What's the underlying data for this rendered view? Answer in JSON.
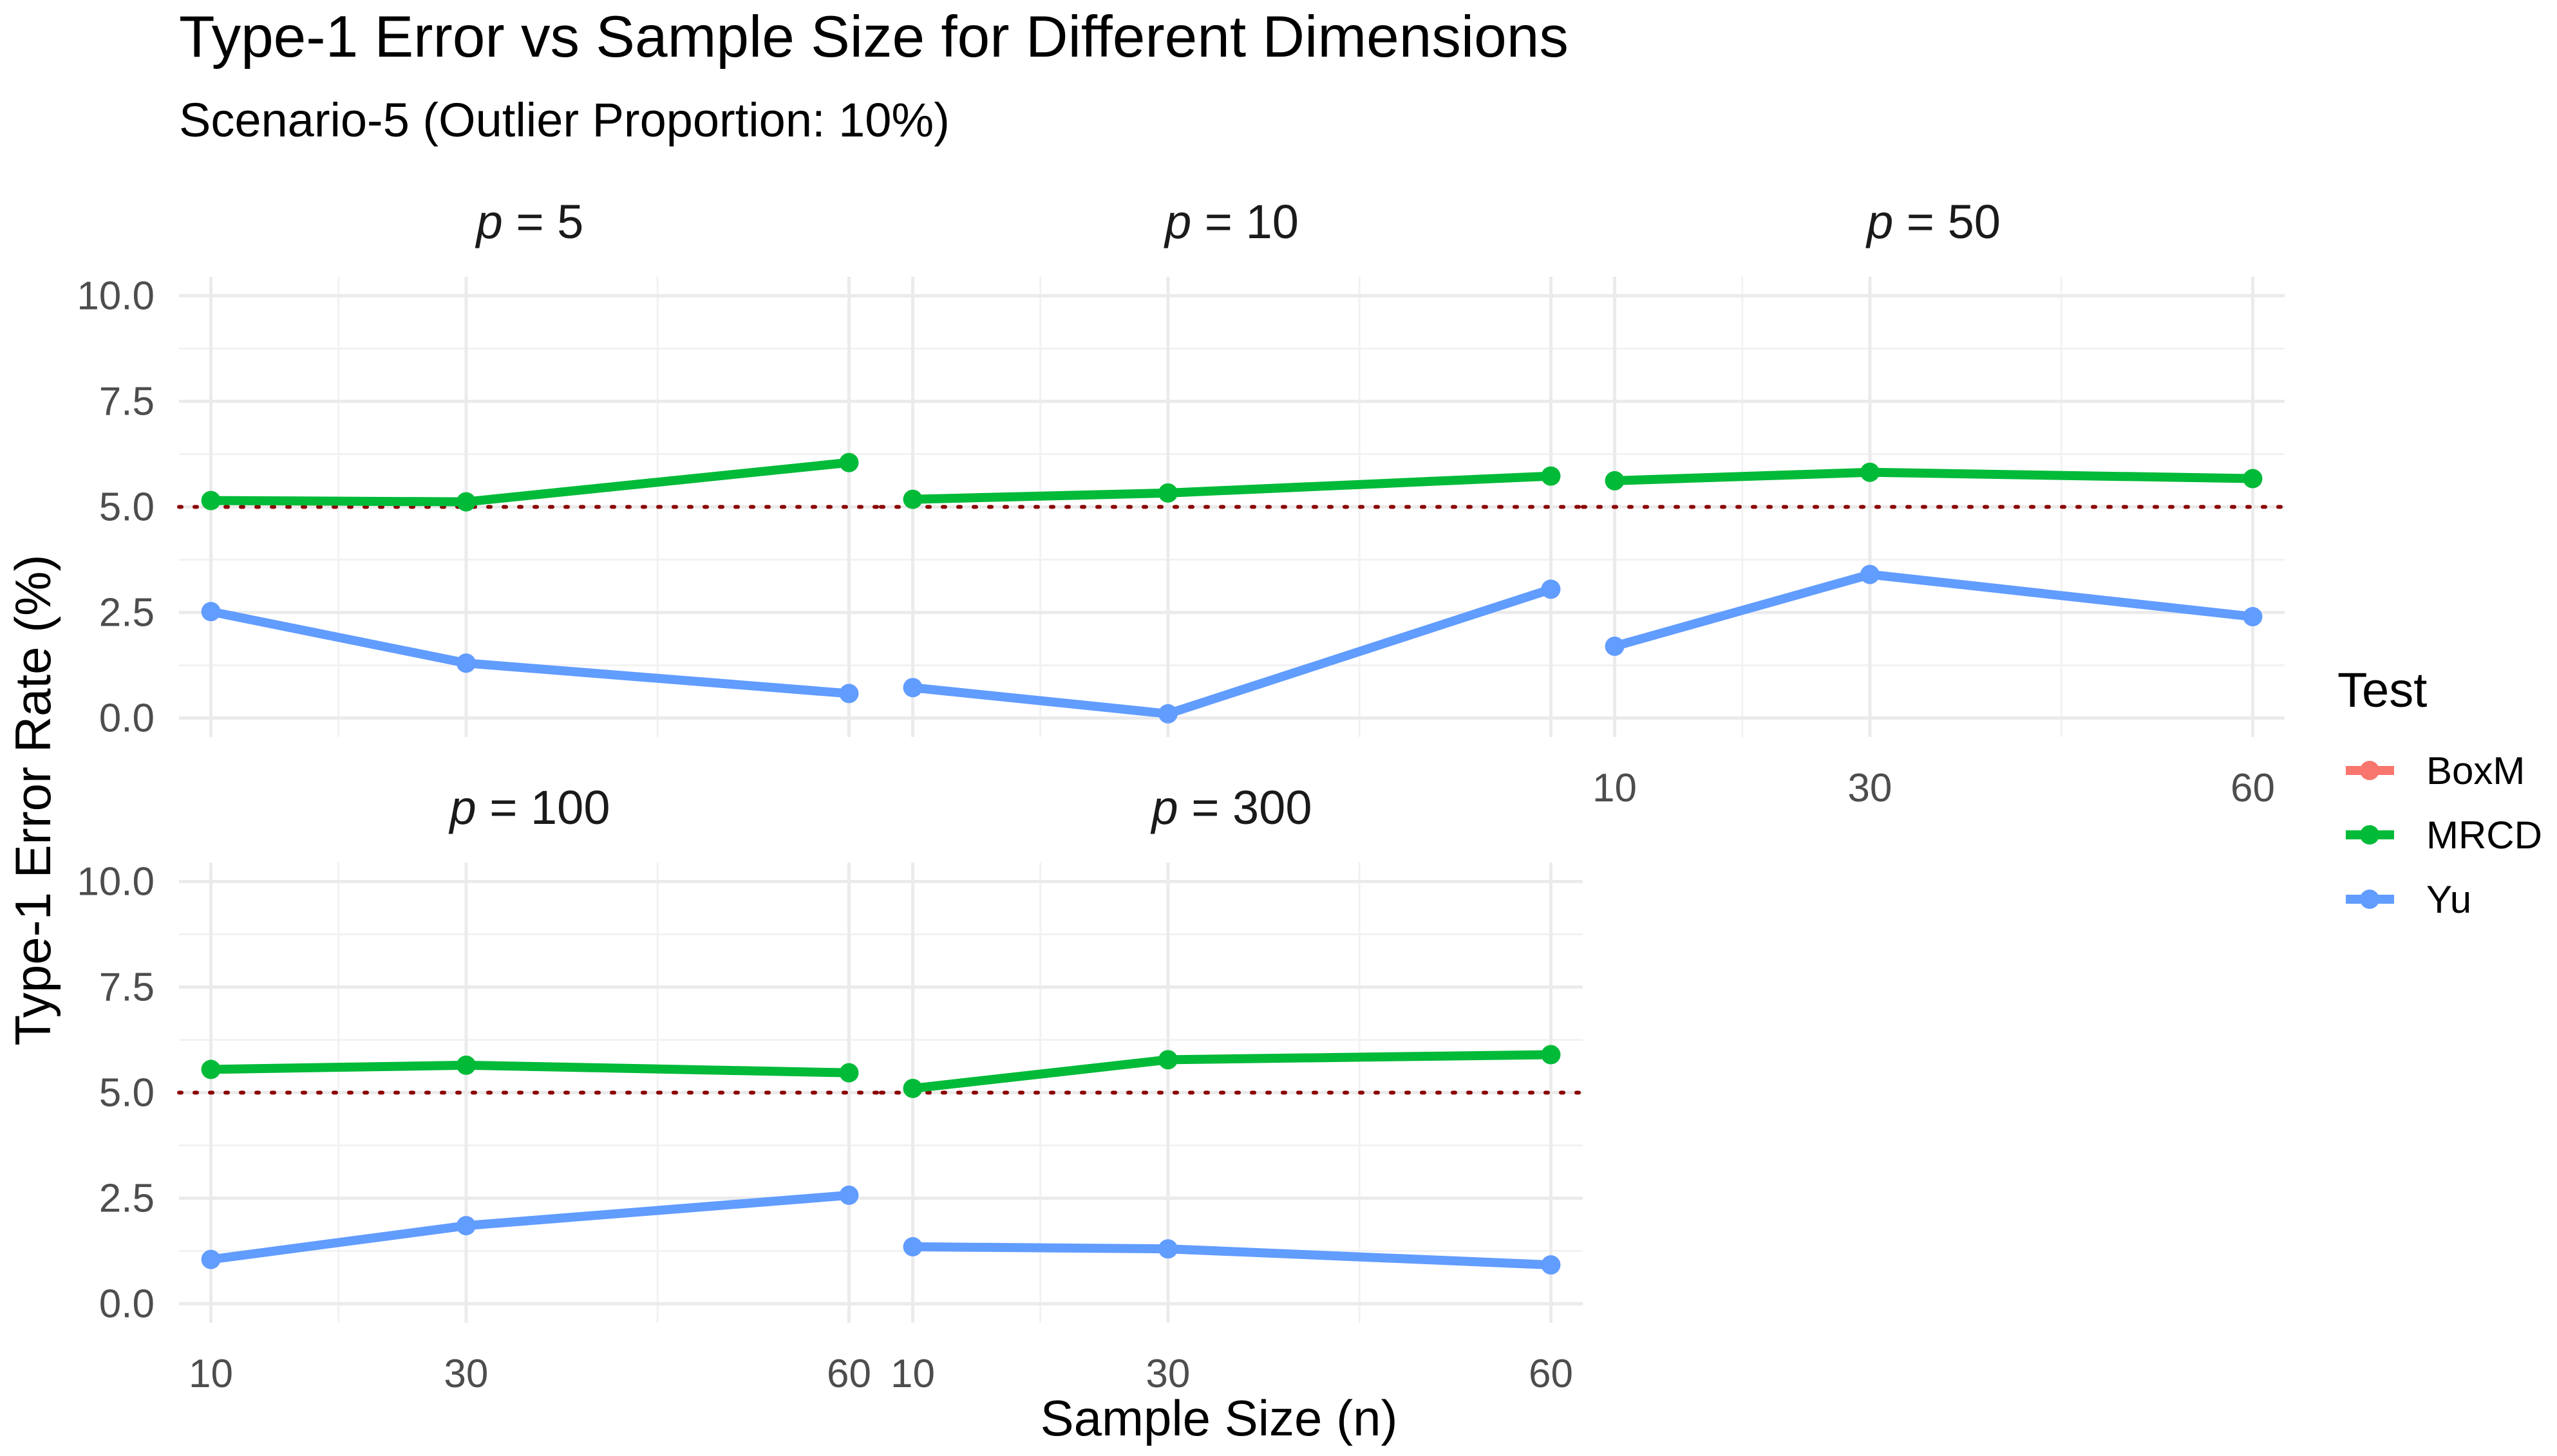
{
  "chart_data": {
    "type": "line",
    "title": "Type-1 Error vs Sample Size for Different Dimensions",
    "subtitle": "Scenario-5 (Outlier Proportion: 10%)",
    "xlabel": "Sample Size (n)",
    "ylabel": "Type-1 Error Rate (%)",
    "x": [
      10,
      30,
      60
    ],
    "x_ticks": [
      "10",
      "30",
      "60"
    ],
    "y_ticks": [
      "0.0",
      "2.5",
      "5.0",
      "7.5",
      "10.0"
    ],
    "ylim": [
      -0.45,
      10.45
    ],
    "xlim": [
      7.5,
      62.5
    ],
    "reference_line": {
      "y": 5.0,
      "style": "dotted",
      "color": "#8b0000"
    },
    "legend": {
      "title": "Test",
      "entries": [
        {
          "name": "BoxM",
          "color": "#f8766d"
        },
        {
          "name": "MRCD",
          "color": "#00ba38"
        },
        {
          "name": "Yu",
          "color": "#619cff"
        }
      ]
    },
    "facet_label_prefix": "p",
    "facets": [
      {
        "p": "5",
        "label": "p = 5",
        "series": [
          {
            "name": "MRCD",
            "values": [
              5.15,
              5.12,
              6.05
            ]
          },
          {
            "name": "Yu",
            "values": [
              2.52,
              1.3,
              0.58
            ]
          }
        ]
      },
      {
        "p": "10",
        "label": "p = 10",
        "series": [
          {
            "name": "MRCD",
            "values": [
              5.18,
              5.33,
              5.73
            ]
          },
          {
            "name": "Yu",
            "values": [
              0.72,
              0.1,
              3.05
            ]
          }
        ]
      },
      {
        "p": "50",
        "label": "p = 50",
        "series": [
          {
            "name": "MRCD",
            "values": [
              5.62,
              5.82,
              5.67
            ]
          },
          {
            "name": "Yu",
            "values": [
              1.7,
              3.4,
              2.4
            ]
          }
        ]
      },
      {
        "p": "100",
        "label": "p = 100",
        "series": [
          {
            "name": "MRCD",
            "values": [
              5.55,
              5.65,
              5.47
            ]
          },
          {
            "name": "Yu",
            "values": [
              1.05,
              1.85,
              2.57
            ]
          }
        ]
      },
      {
        "p": "300",
        "label": "p = 300",
        "series": [
          {
            "name": "MRCD",
            "values": [
              5.1,
              5.78,
              5.9
            ]
          },
          {
            "name": "Yu",
            "values": [
              1.35,
              1.3,
              0.92
            ]
          }
        ]
      }
    ]
  }
}
